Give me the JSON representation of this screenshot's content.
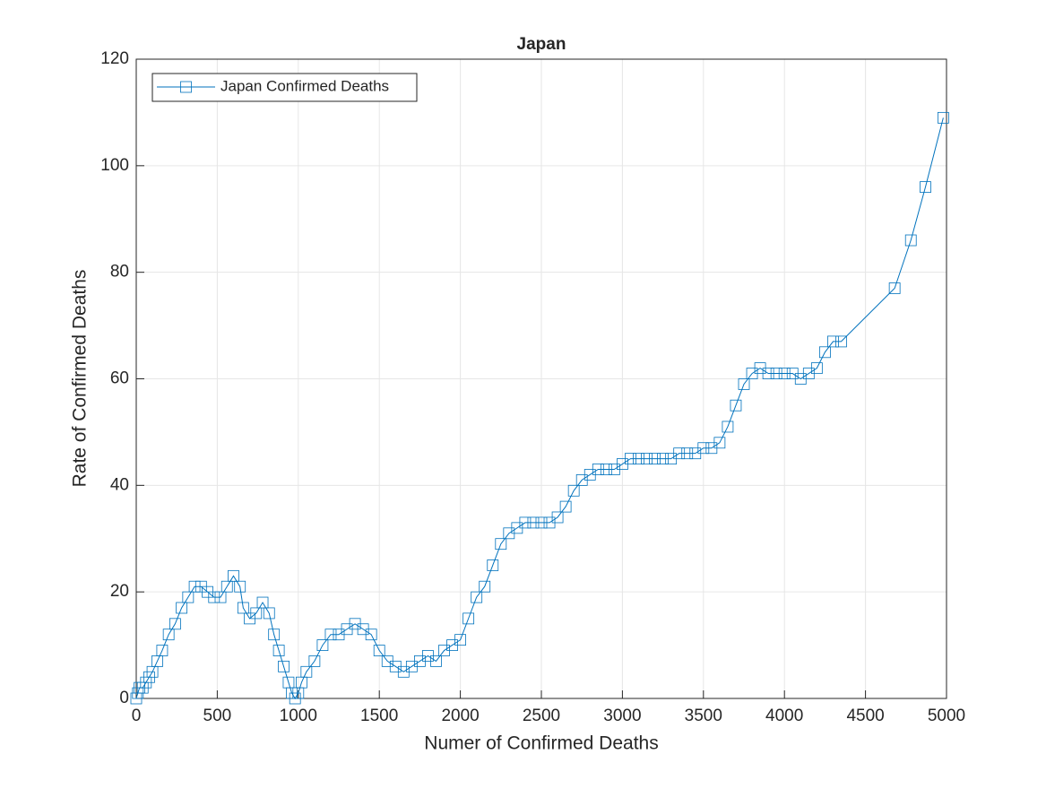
{
  "chart_data": {
    "type": "line",
    "title": "Japan",
    "xlabel": "Numer of Confirmed Deaths",
    "ylabel": "Rate of Confirmed Deaths",
    "xlim": [
      0,
      5000
    ],
    "xticks": [
      0,
      500,
      1000,
      1500,
      2000,
      2500,
      3000,
      3500,
      4000,
      4500,
      5000
    ],
    "ylim": [
      0,
      120
    ],
    "yticks": [
      0,
      20,
      40,
      60,
      80,
      100,
      120
    ],
    "grid": true,
    "legend": "upper-left",
    "marker": "square",
    "x": [
      0,
      10,
      20,
      40,
      60,
      80,
      100,
      130,
      160,
      200,
      240,
      280,
      320,
      360,
      400,
      440,
      480,
      520,
      560,
      600,
      640,
      660,
      700,
      740,
      780,
      820,
      850,
      880,
      910,
      940,
      960,
      980,
      1000,
      1020,
      1050,
      1100,
      1150,
      1200,
      1250,
      1300,
      1350,
      1400,
      1450,
      1500,
      1550,
      1600,
      1650,
      1700,
      1750,
      1800,
      1850,
      1900,
      1950,
      2000,
      2050,
      2100,
      2150,
      2200,
      2250,
      2300,
      2350,
      2400,
      2450,
      2500,
      2550,
      2600,
      2650,
      2700,
      2750,
      2800,
      2850,
      2900,
      2950,
      3000,
      3050,
      3100,
      3150,
      3200,
      3250,
      3300,
      3350,
      3400,
      3450,
      3500,
      3550,
      3600,
      3650,
      3700,
      3750,
      3800,
      3850,
      3900,
      3950,
      4000,
      4050,
      4100,
      4150,
      4200,
      4250,
      4300,
      4350,
      4680,
      4780,
      4870,
      4980
    ],
    "series": [
      {
        "name": "Japan Confirmed Deaths",
        "color": "#0072bd",
        "values": [
          0,
          1,
          2,
          2,
          3,
          4,
          5,
          7,
          9,
          12,
          14,
          17,
          19,
          21,
          21,
          20,
          19,
          19,
          21,
          23,
          21,
          17,
          15,
          16,
          18,
          16,
          12,
          9,
          6,
          3,
          1,
          0,
          1,
          3,
          5,
          7,
          10,
          12,
          12,
          13,
          14,
          13,
          12,
          9,
          7,
          6,
          5,
          6,
          7,
          8,
          7,
          9,
          10,
          11,
          15,
          19,
          21,
          25,
          29,
          31,
          32,
          33,
          33,
          33,
          33,
          34,
          36,
          39,
          41,
          42,
          43,
          43,
          43,
          44,
          45,
          45,
          45,
          45,
          45,
          45,
          46,
          46,
          46,
          47,
          47,
          48,
          51,
          55,
          59,
          61,
          62,
          61,
          61,
          61,
          61,
          60,
          61,
          62,
          65,
          67,
          67,
          77,
          86,
          96,
          109
        ]
      }
    ]
  }
}
